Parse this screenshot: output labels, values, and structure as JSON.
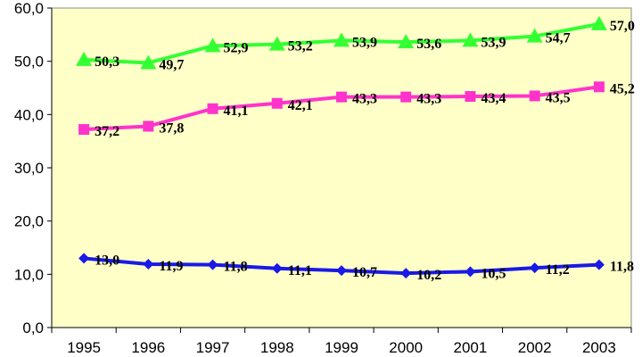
{
  "chart_data": {
    "type": "line",
    "categories": [
      "1995",
      "1996",
      "1997",
      "1998",
      "1999",
      "2000",
      "2001",
      "2002",
      "2003"
    ],
    "ylim": [
      0,
      60
    ],
    "yticks": [
      "0,0",
      "10,0",
      "20,0",
      "30,0",
      "40,0",
      "50,0",
      "60,0"
    ],
    "grid": false,
    "plot_background": "#FFFFC8",
    "series": [
      {
        "marker": "triangle",
        "color": "#33FF33",
        "values": [
          50.3,
          49.7,
          52.9,
          53.2,
          53.9,
          53.6,
          53.9,
          54.7,
          57.0
        ],
        "labels": [
          "50,3",
          "49,7",
          "52,9",
          "53,2",
          "53,9",
          "53,6",
          "53,9",
          "54,7",
          "57,0"
        ]
      },
      {
        "marker": "square",
        "color": "#FF33CC",
        "values": [
          37.2,
          37.8,
          41.1,
          42.1,
          43.3,
          43.3,
          43.4,
          43.5,
          45.2
        ],
        "labels": [
          "37,2",
          "37,8",
          "41,1",
          "42,1",
          "43,3",
          "43,3",
          "43,4",
          "43,5",
          "45,2"
        ]
      },
      {
        "marker": "diamond",
        "color": "#1A1AE6",
        "values": [
          13.0,
          11.9,
          11.8,
          11.1,
          10.7,
          10.2,
          10.5,
          11.2,
          11.8
        ],
        "labels": [
          "13,0",
          "11,9",
          "11,8",
          "11,1",
          "10,7",
          "10,2",
          "10,5",
          "11,2",
          "11,8"
        ]
      }
    ]
  }
}
